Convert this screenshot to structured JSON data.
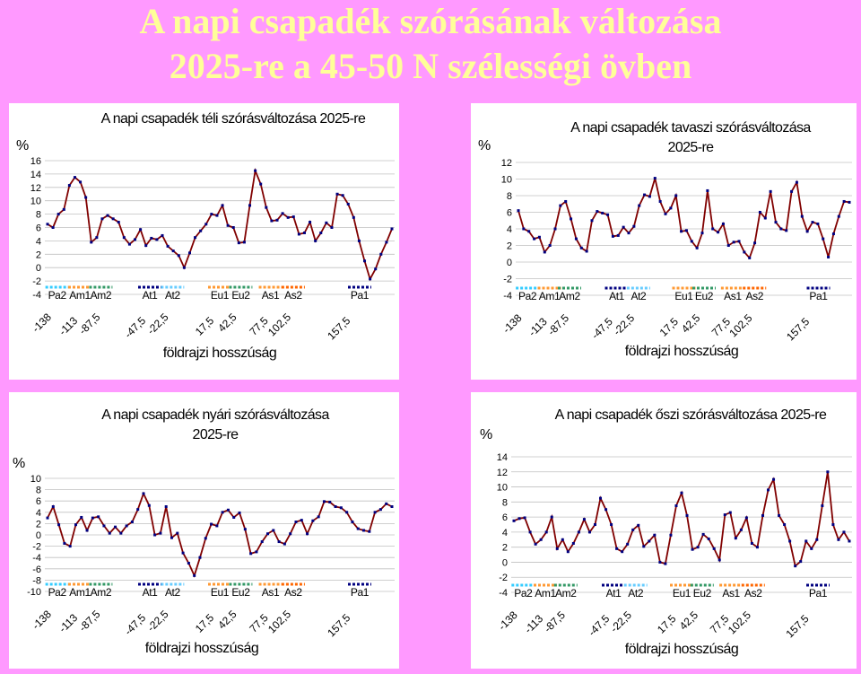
{
  "page_title": {
    "line1": "A napi csapadék szórásának változása",
    "line2": "2025-re a 45-50 N szélességi övben"
  },
  "colors": {
    "background": "#ff99ff",
    "title": "#ffff99",
    "line": "#800000",
    "marker": "#000080"
  },
  "chart_data": [
    {
      "type": "line",
      "title": "A napi csapadék téli szórásváltozása 2025-re",
      "ylabel": "%",
      "xlabel": "földrajzi hosszúság",
      "ylim": [
        -4,
        16
      ],
      "yticks": [
        -4,
        -2,
        0,
        2,
        4,
        6,
        8,
        10,
        12,
        14,
        16
      ],
      "x_tick_labels": [
        "-138",
        "-113",
        "-87,5",
        "-47,5",
        "-22,5",
        "17,5",
        "42,5",
        "77,5",
        "102,5",
        "157,5"
      ],
      "region_labels": [
        "Pa2",
        "Am1",
        "Am2",
        "At1",
        "At2",
        "Eu1",
        "Eu2",
        "As1",
        "As2",
        "Pa1"
      ],
      "values": [
        6.5,
        6,
        8,
        8.7,
        12.3,
        13.5,
        12.8,
        10.5,
        3.8,
        4.5,
        7.3,
        7.8,
        7.3,
        6.8,
        4.5,
        3.5,
        4.2,
        5.7,
        3.3,
        4.4,
        4.2,
        4.8,
        3.2,
        2.5,
        1.8,
        0,
        2.2,
        4.5,
        5.5,
        6.5,
        8,
        7.8,
        9.3,
        6.3,
        6,
        3.7,
        3.8,
        9.3,
        14.5,
        12.5,
        9,
        7,
        7.1,
        8.1,
        7.5,
        7.6,
        5,
        5.2,
        6.8,
        4,
        5.2,
        6.7,
        6,
        11,
        10.8,
        9.5,
        7.5,
        4,
        1,
        -1.7,
        -0.2,
        2,
        3.8,
        5.8
      ]
    },
    {
      "type": "line",
      "title": "A napi csapadék tavaszi szórásváltozása 2025-re",
      "ylabel": "%",
      "xlabel": "földrajzi hosszúság",
      "ylim": [
        -4,
        12
      ],
      "yticks": [
        -4,
        -2,
        0,
        2,
        4,
        6,
        8,
        10,
        12
      ],
      "x_tick_labels": [
        "-138",
        "-113",
        "-87,5",
        "-47,5",
        "-22,5",
        "17,5",
        "42,5",
        "77,5",
        "102,5",
        "157,5"
      ],
      "region_labels": [
        "Pa2",
        "Am1",
        "Am2",
        "At1",
        "At2",
        "Eu1",
        "Eu2",
        "As1",
        "As2",
        "Pa1"
      ],
      "values": [
        6.2,
        4,
        3.7,
        2.8,
        3,
        1.2,
        2,
        4,
        6.8,
        7.3,
        5.2,
        2.8,
        1.7,
        1.3,
        5,
        6.1,
        5.9,
        5.7,
        3.1,
        3.2,
        4.2,
        3.5,
        4.3,
        6.8,
        8.1,
        7.9,
        10.1,
        7.3,
        5.8,
        6.5,
        8,
        3.7,
        3.8,
        2.5,
        1.7,
        3.5,
        8.6,
        4,
        3.6,
        4.6,
        2,
        2.4,
        2.5,
        1.2,
        0.5,
        2.3,
        6,
        5.3,
        8.5,
        4.8,
        4,
        3.8,
        8.5,
        9.6,
        5.5,
        3.7,
        4.8,
        4.6,
        2.8,
        0.6,
        3.4,
        5.5,
        7.3,
        7.2
      ]
    },
    {
      "type": "line",
      "title": "A napi csapadék nyári szórásváltozása 2025-re",
      "ylabel": "%",
      "xlabel": "földrajzi hosszúság",
      "ylim": [
        -10,
        10
      ],
      "yticks": [
        -10,
        -8,
        -6,
        -4,
        -2,
        0,
        2,
        4,
        6,
        8,
        10
      ],
      "x_tick_labels": [
        "-138",
        "-113",
        "-87,5",
        "-47,5",
        "-22,5",
        "17,5",
        "42,5",
        "77,5",
        "102,5",
        "157,5"
      ],
      "region_labels": [
        "Pa2",
        "Am1",
        "Am2",
        "At1",
        "At2",
        "Eu1",
        "Eu2",
        "As1",
        "As2",
        "Pa1"
      ],
      "values": [
        3,
        5,
        1.8,
        -1.5,
        -2,
        1.8,
        3.1,
        0.8,
        3,
        3.2,
        1.6,
        0.3,
        1.4,
        0.3,
        1.6,
        2.3,
        4.5,
        7.3,
        5.2,
        0,
        0.3,
        5,
        -0.5,
        0.3,
        -3.2,
        -5,
        -7.2,
        -4,
        -0.6,
        1.9,
        1.6,
        4,
        4.4,
        3.1,
        3.9,
        1,
        -3.3,
        -3,
        -1.2,
        0.2,
        0.8,
        -1.2,
        -1.6,
        0.2,
        2.3,
        2.6,
        0.2,
        2.5,
        3.2,
        5.9,
        5.8,
        5,
        4.8,
        4,
        2.3,
        1.1,
        0.8,
        0.6,
        4,
        4.5,
        5.5,
        5
      ]
    },
    {
      "type": "line",
      "title": "A napi csapadék őszi szórásváltozása 2025-re",
      "ylabel": "%",
      "xlabel": "földrajzi hosszúság",
      "ylim": [
        -4,
        14
      ],
      "yticks": [
        -4,
        -2,
        0,
        2,
        4,
        6,
        8,
        10,
        12,
        14
      ],
      "x_tick_labels": [
        "-138",
        "-113",
        "-87,5",
        "-47,5",
        "-22,5",
        "17,5",
        "42,5",
        "77,5",
        "102,5",
        "157,5"
      ],
      "region_labels": [
        "Pa2",
        "Am1",
        "Am2",
        "At1",
        "At2",
        "Eu1",
        "Eu2",
        "As1",
        "As2",
        "Pa1"
      ],
      "values": [
        5.5,
        5.8,
        5.9,
        4,
        2.4,
        3,
        4,
        6,
        1.8,
        3,
        1.4,
        2.5,
        4,
        5.7,
        4,
        5,
        8.5,
        7,
        5,
        1.8,
        1.4,
        2.4,
        4.3,
        4.9,
        2.1,
        2.8,
        3.6,
        0,
        -0.2,
        3.6,
        7.5,
        9.2,
        6.2,
        1.7,
        2,
        3.7,
        3.1,
        1.8,
        0.3,
        6.3,
        6.6,
        3.2,
        4.3,
        5.9,
        2.5,
        2,
        6.2,
        9.6,
        11,
        6.2,
        5,
        2.8,
        -0.5,
        0.1,
        2.8,
        1.8,
        3,
        7.5,
        12,
        5,
        3,
        4,
        2.8
      ]
    }
  ]
}
